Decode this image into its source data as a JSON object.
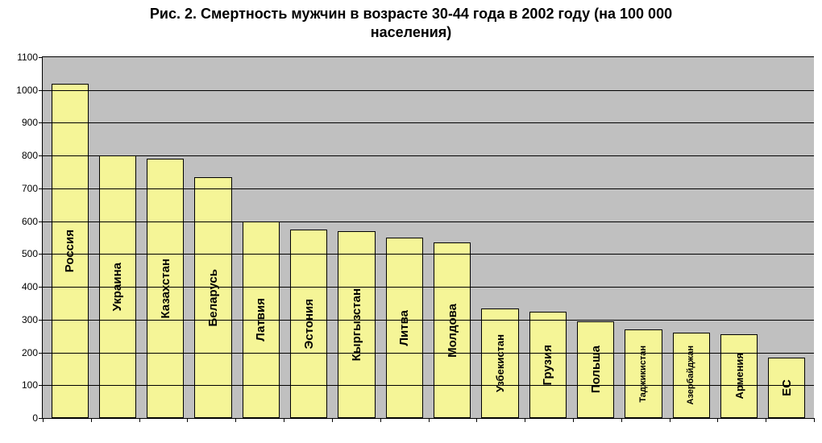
{
  "chart": {
    "type": "bar",
    "title_line1": "Рис. 2. Смертность мужчин в возрасте 30-44 года в 2002 году (на 100 000",
    "title_line2": "населения)",
    "title_fontsize": 18,
    "title_fontweight": "bold",
    "background_color": "#ffffff",
    "plot_background_color": "#c0c0c0",
    "grid_color": "#000000",
    "border_color": "#000000",
    "y_axis": {
      "min": 0,
      "max": 1100,
      "tick_step": 100,
      "ticks": [
        0,
        100,
        200,
        300,
        400,
        500,
        600,
        700,
        800,
        900,
        1000,
        1100
      ],
      "label_fontsize": 12
    },
    "bars": [
      {
        "label": "Россия",
        "value": 1020,
        "fontsize": 15
      },
      {
        "label": "Украина",
        "value": 800,
        "fontsize": 15
      },
      {
        "label": "Казахстан",
        "value": 790,
        "fontsize": 15
      },
      {
        "label": "Беларусь",
        "value": 735,
        "fontsize": 15
      },
      {
        "label": "Латвия",
        "value": 600,
        "fontsize": 15
      },
      {
        "label": "Эстония",
        "value": 575,
        "fontsize": 15
      },
      {
        "label": "Кыргызстан",
        "value": 570,
        "fontsize": 15
      },
      {
        "label": "Литва",
        "value": 550,
        "fontsize": 15
      },
      {
        "label": "Молдова",
        "value": 535,
        "fontsize": 15
      },
      {
        "label": "Узбекистан",
        "value": 335,
        "fontsize": 13
      },
      {
        "label": "Грузия",
        "value": 325,
        "fontsize": 15
      },
      {
        "label": "Польша",
        "value": 295,
        "fontsize": 15
      },
      {
        "label": "Таджикистан",
        "value": 270,
        "fontsize": 11
      },
      {
        "label": "Азербайджан",
        "value": 260,
        "fontsize": 11
      },
      {
        "label": "Армения",
        "value": 255,
        "fontsize": 13
      },
      {
        "label": "ЕС",
        "value": 185,
        "fontsize": 15
      }
    ],
    "bar_color": "#f5f597",
    "bar_border_color": "#000000",
    "bar_width_ratio": 0.78,
    "bar_label_fontweight": "bold"
  }
}
